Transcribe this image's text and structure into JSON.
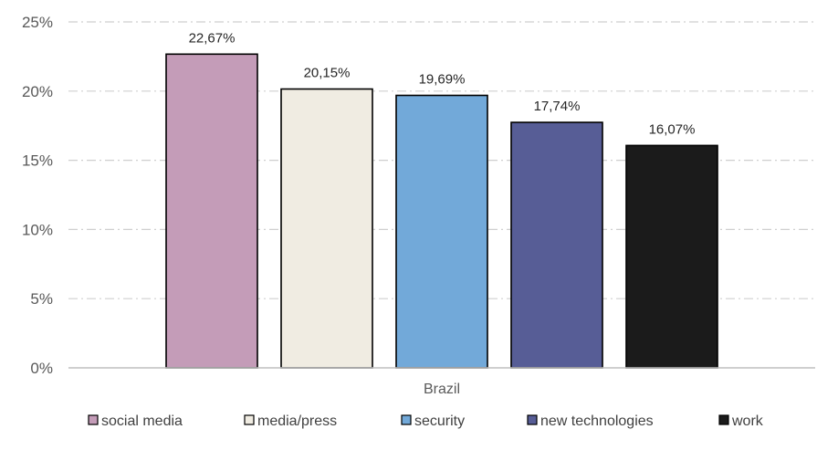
{
  "chart_data": {
    "type": "bar",
    "categories": [
      "Brazil"
    ],
    "series": [
      {
        "name": "social media",
        "values": [
          22.67
        ],
        "label": "22,67%",
        "color": "#c49cb8"
      },
      {
        "name": "media/press",
        "values": [
          20.15
        ],
        "label": "20,15%",
        "color": "#f0ece2"
      },
      {
        "name": "security",
        "values": [
          19.69
        ],
        "label": "19,69%",
        "color": "#72a9d9"
      },
      {
        "name": "new technologies",
        "values": [
          17.74
        ],
        "label": "17,74%",
        "color": "#575d96"
      },
      {
        "name": "work",
        "values": [
          16.07
        ],
        "label": "16,07%",
        "color": "#1b1b1b"
      }
    ],
    "ylim": [
      0,
      25
    ],
    "yticks": [
      {
        "value": 0,
        "label": "0%"
      },
      {
        "value": 5,
        "label": "5%"
      },
      {
        "value": 10,
        "label": "10%"
      },
      {
        "value": 15,
        "label": "15%"
      },
      {
        "value": 20,
        "label": "20%"
      },
      {
        "value": 25,
        "label": "25%"
      }
    ],
    "grid": true,
    "legend_position": "bottom"
  }
}
